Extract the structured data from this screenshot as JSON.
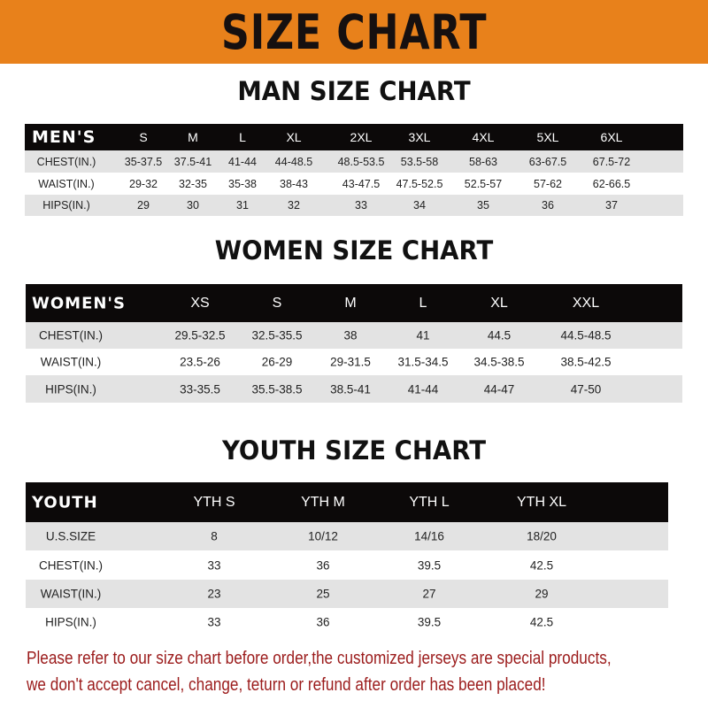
{
  "title": "SIZE CHART",
  "accent_color": "#e8811b",
  "men": {
    "title": "MAN SIZE CHART",
    "header": [
      "MEN'S",
      "S",
      "M",
      "L",
      "XL",
      "2XL",
      "3XL",
      "4XL",
      "5XL",
      "6XL"
    ],
    "rows": [
      [
        "CHEST(IN.)",
        "35-37.5",
        "37.5-41",
        "41-44",
        "44-48.5",
        "48.5-53.5",
        "53.5-58",
        "58-63",
        "63-67.5",
        "67.5-72"
      ],
      [
        "WAIST(IN.)",
        "29-32",
        "32-35",
        "35-38",
        "38-43",
        "43-47.5",
        "47.5-52.5",
        "52.5-57",
        "57-62",
        "62-66.5"
      ],
      [
        "HIPS(IN.)",
        "29",
        "30",
        "31",
        "32",
        "33",
        "34",
        "35",
        "36",
        "37"
      ]
    ]
  },
  "women": {
    "title": "WOMEN SIZE CHART",
    "header": [
      "WOMEN'S",
      "XS",
      "S",
      "M",
      "L",
      "XL",
      "XXL"
    ],
    "rows": [
      [
        "CHEST(IN.)",
        "29.5-32.5",
        "32.5-35.5",
        "38",
        "41",
        "44.5",
        "44.5-48.5"
      ],
      [
        "WAIST(IN.)",
        "23.5-26",
        "26-29",
        "29-31.5",
        "31.5-34.5",
        "34.5-38.5",
        "38.5-42.5"
      ],
      [
        "HIPS(IN.)",
        "33-35.5",
        "35.5-38.5",
        "38.5-41",
        "41-44",
        "44-47",
        "47-50"
      ]
    ]
  },
  "youth": {
    "title": "YOUTH SIZE CHART",
    "header": [
      "YOUTH",
      "YTH S",
      "YTH M",
      "YTH L",
      "YTH XL"
    ],
    "rows": [
      [
        "U.S.SIZE",
        "8",
        "10/12",
        "14/16",
        "18/20"
      ],
      [
        "CHEST(IN.)",
        "33",
        "36",
        "39.5",
        "42.5"
      ],
      [
        "WAIST(IN.)",
        "23",
        "25",
        "27",
        "29"
      ],
      [
        "HIPS(IN.)",
        "33",
        "36",
        "39.5",
        "42.5"
      ]
    ]
  },
  "note": {
    "line1": "Please refer to our size chart before order,the customized jerseys are special products,",
    "line2": "we don't accept cancel, change, teturn or refund after order has been placed!",
    "color": "#9b1b1b"
  }
}
